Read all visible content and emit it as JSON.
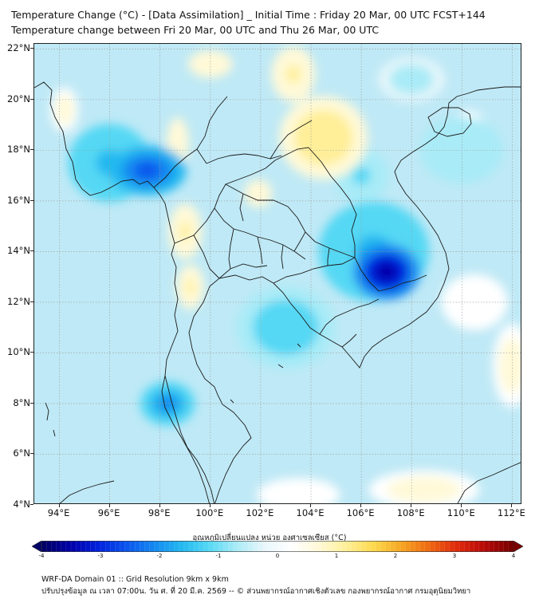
{
  "header": {
    "title_line1": "Temperature Change (°C) - [Data Assimilation] _ Initial Time : Friday 20 Mar, 00 UTC FCST+144",
    "title_line2": "Temperature change between Fri 20 Mar, 00 UTC and Thu 26 Mar, 00 UTC"
  },
  "map": {
    "lat_labels": [
      "22°N",
      "20°N",
      "18°N",
      "16°N",
      "14°N",
      "12°N",
      "10°N",
      "8°N",
      "6°N",
      "4°N"
    ],
    "lon_labels": [
      "94°E",
      "96°E",
      "98°E",
      "100°E",
      "102°E",
      "104°E",
      "106°E",
      "108°E",
      "110°E",
      "112°E"
    ],
    "lat_range": [
      4,
      22.2
    ],
    "lon_range": [
      93,
      112.4
    ],
    "gridlines": true,
    "anomaly_blobs": [
      {
        "lon": 107.0,
        "lat": 13.2,
        "value": -3.5,
        "spread_lon": 1.2,
        "spread_lat": 1.0
      },
      {
        "lon": 106.5,
        "lat": 14.0,
        "value": -1.5,
        "spread_lon": 2.0,
        "spread_lat": 1.8
      },
      {
        "lon": 97.5,
        "lat": 17.2,
        "value": -2.5,
        "spread_lon": 1.4,
        "spread_lat": 0.9
      },
      {
        "lon": 96.0,
        "lat": 17.5,
        "value": -1.5,
        "spread_lon": 1.5,
        "spread_lat": 1.4
      },
      {
        "lon": 98.3,
        "lat": 8.0,
        "value": -1.8,
        "spread_lon": 1.0,
        "spread_lat": 0.8
      },
      {
        "lon": 103.0,
        "lat": 11.0,
        "value": -1.2,
        "spread_lon": 1.8,
        "spread_lat": 1.5
      },
      {
        "lon": 104.5,
        "lat": 18.5,
        "value": 1.2,
        "spread_lon": 1.6,
        "spread_lat": 1.5
      },
      {
        "lon": 103.3,
        "lat": 21.0,
        "value": 0.9,
        "spread_lon": 0.8,
        "spread_lat": 1.0
      },
      {
        "lon": 99.0,
        "lat": 14.8,
        "value": 1.0,
        "spread_lon": 0.6,
        "spread_lat": 1.0
      },
      {
        "lon": 99.2,
        "lat": 12.6,
        "value": 1.0,
        "spread_lon": 0.5,
        "spread_lat": 0.8
      },
      {
        "lon": 98.7,
        "lat": 18.3,
        "value": 0.8,
        "spread_lon": 0.4,
        "spread_lat": 0.9
      },
      {
        "lon": 101.9,
        "lat": 16.3,
        "value": 0.8,
        "spread_lon": 0.5,
        "spread_lat": 0.5
      },
      {
        "lon": 100.0,
        "lat": 21.4,
        "value": 0.8,
        "spread_lon": 0.8,
        "spread_lat": 0.5
      },
      {
        "lon": 94.2,
        "lat": 19.6,
        "value": 0.7,
        "spread_lon": 0.5,
        "spread_lat": 0.8
      },
      {
        "lon": 112.0,
        "lat": 9.5,
        "value": 0.7,
        "spread_lon": 0.7,
        "spread_lat": 1.5
      },
      {
        "lon": 110.5,
        "lat": 12.0,
        "value": 0.4,
        "spread_lon": 1.2,
        "spread_lat": 1.0
      },
      {
        "lon": 108.5,
        "lat": 4.6,
        "value": 0.6,
        "spread_lon": 2.0,
        "spread_lat": 0.7
      },
      {
        "lon": 103.5,
        "lat": 4.4,
        "value": 0.4,
        "spread_lon": 1.5,
        "spread_lat": 0.6
      },
      {
        "lon": 106.0,
        "lat": 17.0,
        "value": -1.0,
        "spread_lon": 1.0,
        "spread_lat": 1.0
      },
      {
        "lon": 110.0,
        "lat": 18.0,
        "value": -0.8,
        "spread_lon": 1.5,
        "spread_lat": 1.2
      },
      {
        "lon": 108.0,
        "lat": 20.8,
        "value": -0.6,
        "spread_lon": 1.2,
        "spread_lat": 0.8
      },
      {
        "lon": 110.3,
        "lat": 19.1,
        "value": 0.5,
        "spread_lon": 0.5,
        "spread_lat": 0.4
      }
    ]
  },
  "colorbar": {
    "title": "อุณหภูมิเปลี่ยนแปลง หน่วย องศาเซลเซียส (°C)",
    "min": -4,
    "max": 4,
    "tick_labels": [
      "-4",
      "-3",
      "-2",
      "-1",
      "0",
      "1",
      "2",
      "3",
      "4"
    ],
    "colors": [
      "#000066",
      "#0000aa",
      "#0022dd",
      "#0a55ee",
      "#1488f0",
      "#22b8f0",
      "#55d8f4",
      "#a9ebf7",
      "#e8f7fb",
      "#ffffff",
      "#fff9d8",
      "#ffef99",
      "#fcd94d",
      "#f6a623",
      "#ef6a12",
      "#e02b0b",
      "#b80a08",
      "#7a0000"
    ]
  },
  "footer": {
    "line1": "WRF-DA Domain 01 :: Grid Resolution 9km x 9km",
    "line2": "ปรับปรุงข้อมูล ณ เวลา 07:00น. วัน ศ. ที่ 20 มี.ค. 2569 -- © ส่วนพยากรณ์อากาศเชิงตัวเลข กองพยากรณ์อากาศ กรมอุตุนิยมวิทยา"
  }
}
